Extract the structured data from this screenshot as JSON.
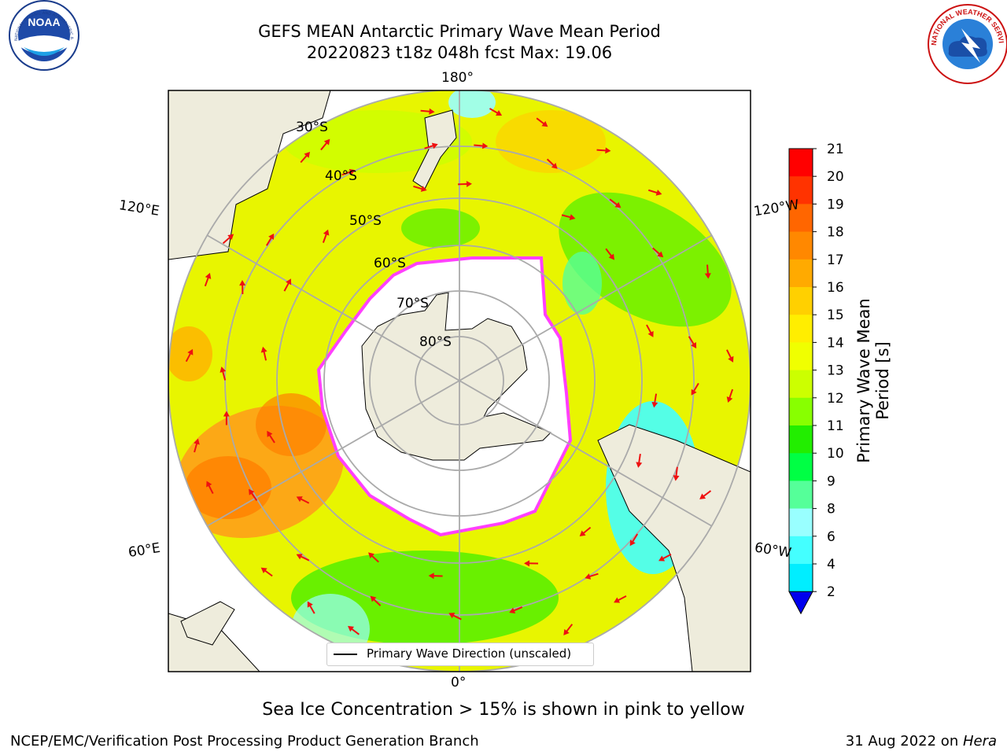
{
  "header": {
    "title_line1": "GEFS MEAN Antarctic Primary Wave Mean Period",
    "title_line2": "20220823 t18z 048h fcst   Max: 19.06"
  },
  "logos": {
    "noaa_text": "NOAA",
    "noaa_ring": "NATIONAL OCEANIC AND ATMOSPHERIC ADMINISTRATION · U.S. DEPARTMENT OF COMMERCE",
    "nws_ring": "NATIONAL WEATHER SERVICE"
  },
  "map": {
    "longitude_labels": [
      "180°",
      "120°E",
      "120°W",
      "60°E",
      "60°W",
      "0°"
    ],
    "latitude_labels": [
      "30°S",
      "40°S",
      "50°S",
      "60°S",
      "70°S",
      "80°S"
    ],
    "legend_label": "Primary Wave Direction (unscaled)",
    "colors": {
      "ocean_fill": "#e8f500",
      "land": "#eeecdc",
      "ice_edge": "#ff40ff",
      "arrow": "#ee1111"
    }
  },
  "colorbar": {
    "label": "Primary Wave Mean Period [s]",
    "ticks": [
      "21",
      "20",
      "19",
      "18",
      "17",
      "16",
      "15",
      "14",
      "13",
      "12",
      "11",
      "10",
      "9",
      "8",
      "6",
      "4",
      "2"
    ],
    "colors": [
      "#ff0000",
      "#ff3300",
      "#ff6600",
      "#ff8800",
      "#ffaa00",
      "#ffd000",
      "#ffee00",
      "#f0ff00",
      "#ccff00",
      "#88ff00",
      "#22ee00",
      "#00ff44",
      "#55ff99",
      "#99ffff",
      "#44ffff",
      "#00eeff",
      "#0088ff",
      "#0000ee"
    ]
  },
  "footer": {
    "note": "Sea Ice Concentration > 15% is shown in pink to yellow",
    "credit": "NCEP/EMC/Verification Post Processing Product Generation Branch",
    "date": "31 Aug 2022 on ",
    "host": "Hera"
  }
}
